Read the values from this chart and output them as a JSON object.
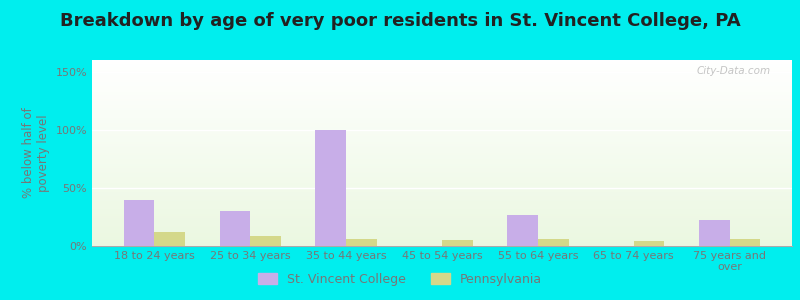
{
  "title": "Breakdown by age of very poor residents in St. Vincent College, PA",
  "ylabel": "% below half of\npoverty level",
  "categories": [
    "18 to 24 years",
    "25 to 34 years",
    "35 to 44 years",
    "45 to 54 years",
    "55 to 64 years",
    "65 to 74 years",
    "75 years and\nover"
  ],
  "st_vincent_values": [
    40,
    30,
    100,
    0,
    27,
    0,
    22
  ],
  "pennsylvania_values": [
    12,
    9,
    6,
    5,
    6,
    4,
    6
  ],
  "st_vincent_color": "#c8aee8",
  "pennsylvania_color": "#d4d88a",
  "ylim": [
    0,
    160
  ],
  "yticks": [
    0,
    50,
    100,
    150
  ],
  "ytick_labels": [
    "0%",
    "50%",
    "100%",
    "150%"
  ],
  "bar_width": 0.32,
  "background_color": "#00eeee",
  "legend_st_vincent": "St. Vincent College",
  "legend_pennsylvania": "Pennsylvania",
  "title_fontsize": 13,
  "axis_fontsize": 8.5,
  "tick_fontsize": 8,
  "watermark": "City-Data.com",
  "text_color": "#777777"
}
